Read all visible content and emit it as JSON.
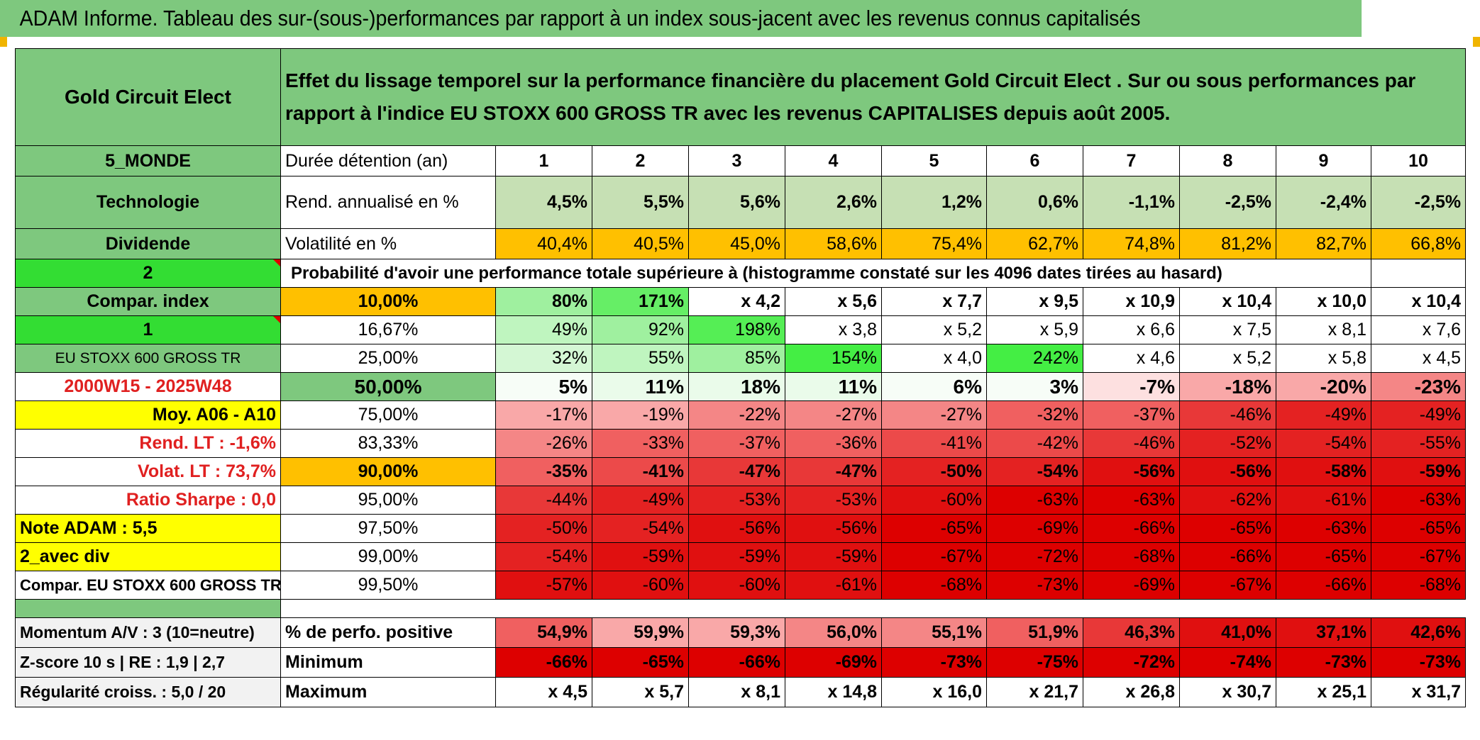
{
  "title": "ADAM Informe. Tableau des sur-(sous-)performances par rapport à un index sous-jacent avec les revenus connus capitalisés",
  "header": {
    "fund_name": "Gold Circuit Elect",
    "description": "Effet du lissage temporel sur la performance financière du placement Gold Circuit Elect . Sur ou sous performances par rapport à l'indice EU STOXX 600 GROSS TR avec les revenus CAPITALISES depuis août 2005."
  },
  "left_labels": {
    "region": "5_MONDE",
    "sector": "Technologie",
    "dividend": "Dividende",
    "two": "2",
    "compar_index": "Compar. index",
    "one": "1",
    "index_name": "EU STOXX 600 GROSS TR",
    "period": "2000W15 - 2025W48",
    "moy": "Moy. A06 - A10",
    "rend_lt": "Rend. LT :    -1,6%",
    "volat_lt": "Volat. LT :    73,7%",
    "sharpe": "Ratio Sharpe :    0,0",
    "note": "Note ADAM : 5,5",
    "avec_div": "2_avec div",
    "compar_full": "Compar. EU STOXX 600 GROSS TR",
    "momentum": "Momentum A/V : 3 (10=neutre)",
    "zscore": "Z-score 10 s | RE : 1,9 | 2,7",
    "regularite": "Régularité croiss. : 5,0 / 20"
  },
  "row_labels": {
    "duree": "Durée détention (an)",
    "rend": "Rend. annualisé en %",
    "volat": "Volatilité en %",
    "proba": "Probabilité d'avoir une performance totale supérieure à (histogramme constaté sur les 4096 dates tirées au hasard)",
    "perfo_pos": "% de perfo. positive",
    "minimum": "Minimum",
    "maximum": "Maximum"
  },
  "years": [
    "1",
    "2",
    "3",
    "4",
    "5",
    "6",
    "7",
    "8",
    "9",
    "10"
  ],
  "rend": [
    "4,5%",
    "5,5%",
    "5,6%",
    "2,6%",
    "1,2%",
    "0,6%",
    "-1,1%",
    "-2,5%",
    "-2,4%",
    "-2,5%"
  ],
  "volat": [
    "40,4%",
    "40,5%",
    "45,0%",
    "58,6%",
    "75,4%",
    "62,7%",
    "74,8%",
    "81,2%",
    "82,7%",
    "66,8%"
  ],
  "percentiles": [
    {
      "p": "10,00%",
      "bold": true,
      "vals": [
        "80%",
        "171%",
        "x 4,2",
        "x 5,6",
        "x 7,7",
        "x 9,5",
        "x 10,9",
        "x 10,4",
        "x 10,0",
        "x 10,4"
      ]
    },
    {
      "p": "16,67%",
      "bold": false,
      "vals": [
        "49%",
        "92%",
        "198%",
        "x 3,8",
        "x 5,2",
        "x 5,9",
        "x 6,6",
        "x 7,5",
        "x 8,1",
        "x 7,6"
      ]
    },
    {
      "p": "25,00%",
      "bold": false,
      "vals": [
        "32%",
        "55%",
        "85%",
        "154%",
        "x 4,0",
        "242%",
        "x 4,6",
        "x 5,2",
        "x 5,8",
        "x 4,5"
      ]
    },
    {
      "p": "50,00%",
      "bold": true,
      "vals": [
        "5%",
        "11%",
        "18%",
        "11%",
        "6%",
        "3%",
        "-7%",
        "-18%",
        "-20%",
        "-23%"
      ]
    },
    {
      "p": "75,00%",
      "bold": false,
      "vals": [
        "-17%",
        "-19%",
        "-22%",
        "-27%",
        "-27%",
        "-32%",
        "-37%",
        "-46%",
        "-49%",
        "-49%"
      ]
    },
    {
      "p": "83,33%",
      "bold": false,
      "vals": [
        "-26%",
        "-33%",
        "-37%",
        "-36%",
        "-41%",
        "-42%",
        "-46%",
        "-52%",
        "-54%",
        "-55%"
      ]
    },
    {
      "p": "90,00%",
      "bold": true,
      "vals": [
        "-35%",
        "-41%",
        "-47%",
        "-47%",
        "-50%",
        "-54%",
        "-56%",
        "-56%",
        "-58%",
        "-59%"
      ]
    },
    {
      "p": "95,00%",
      "bold": false,
      "vals": [
        "-44%",
        "-49%",
        "-53%",
        "-53%",
        "-60%",
        "-63%",
        "-63%",
        "-62%",
        "-61%",
        "-63%"
      ]
    },
    {
      "p": "97,50%",
      "bold": false,
      "vals": [
        "-50%",
        "-54%",
        "-56%",
        "-56%",
        "-65%",
        "-69%",
        "-66%",
        "-65%",
        "-63%",
        "-65%"
      ]
    },
    {
      "p": "99,00%",
      "bold": false,
      "vals": [
        "-54%",
        "-59%",
        "-59%",
        "-59%",
        "-67%",
        "-72%",
        "-68%",
        "-66%",
        "-65%",
        "-67%"
      ]
    },
    {
      "p": "99,50%",
      "bold": false,
      "vals": [
        "-57%",
        "-60%",
        "-60%",
        "-61%",
        "-68%",
        "-73%",
        "-69%",
        "-67%",
        "-66%",
        "-68%"
      ]
    }
  ],
  "perfo_pos": [
    "54,9%",
    "59,9%",
    "59,3%",
    "56,0%",
    "55,1%",
    "51,9%",
    "46,3%",
    "41,0%",
    "37,1%",
    "42,6%"
  ],
  "minimum": [
    "-66%",
    "-65%",
    "-66%",
    "-69%",
    "-73%",
    "-75%",
    "-72%",
    "-74%",
    "-73%",
    "-73%"
  ],
  "maximum": [
    "x 4,5",
    "x 5,7",
    "x 8,1",
    "x 14,8",
    "x 16,0",
    "x 21,7",
    "x 26,8",
    "x 30,7",
    "x 25,1",
    "x 31,7"
  ],
  "colors": {
    "header_green": "#7ec87e",
    "lime": "#33dd33",
    "orange": "#ffc000",
    "yellow": "#ffff00",
    "label_red": "#e02020"
  }
}
